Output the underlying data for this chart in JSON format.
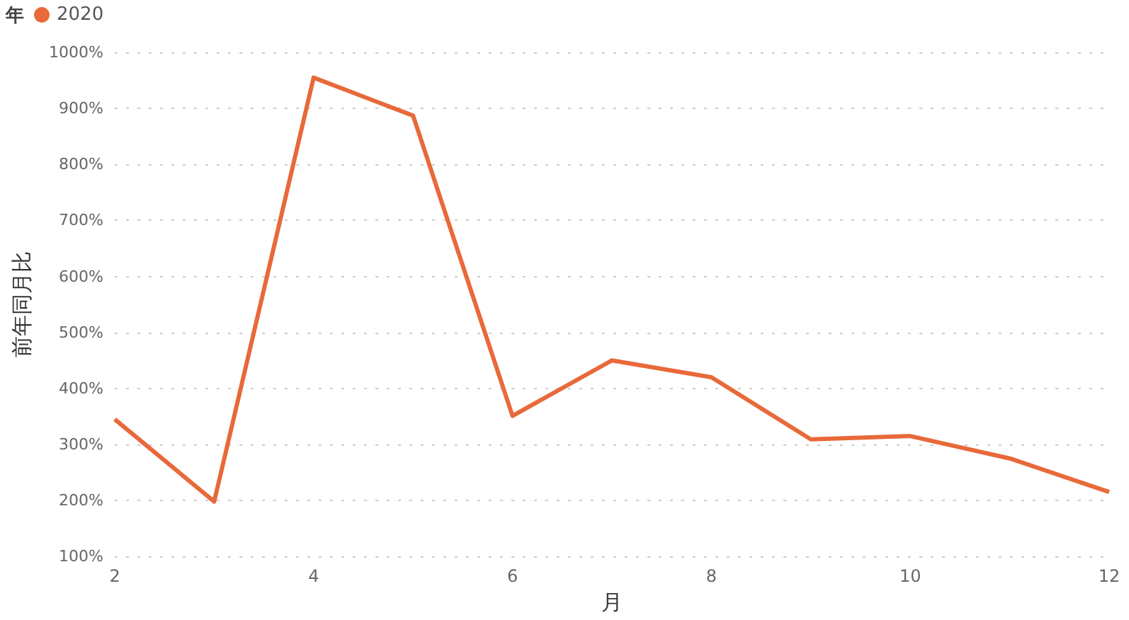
{
  "chart_data": {
    "type": "line",
    "xlabel": "月",
    "ylabel": "前年同月比",
    "legend_title": "年",
    "legend": "top left",
    "grid": "y",
    "marker": "none",
    "line_style": "solid",
    "x": [
      2,
      3,
      4,
      5,
      6,
      7,
      8,
      9,
      10,
      11,
      12
    ],
    "series": [
      {
        "name": "2020",
        "color": "#e8693a",
        "values": [
          345,
          198,
          955,
          887,
          351,
          450,
          420,
          309,
          315,
          275,
          215
        ]
      }
    ],
    "xlim": [
      2,
      12
    ],
    "xticks": [
      2,
      4,
      6,
      8,
      10,
      12
    ],
    "ylim": [
      100,
      1000
    ],
    "yticks": [
      {
        "value": 100,
        "label": "100%"
      },
      {
        "value": 200,
        "label": "200%"
      },
      {
        "value": 300,
        "label": "300%"
      },
      {
        "value": 400,
        "label": "400%"
      },
      {
        "value": 500,
        "label": "500%"
      },
      {
        "value": 600,
        "label": "600%"
      },
      {
        "value": 700,
        "label": "700%"
      },
      {
        "value": 800,
        "label": "800%"
      },
      {
        "value": 900,
        "label": "900%"
      },
      {
        "value": 1000,
        "label": "1000%"
      }
    ]
  }
}
